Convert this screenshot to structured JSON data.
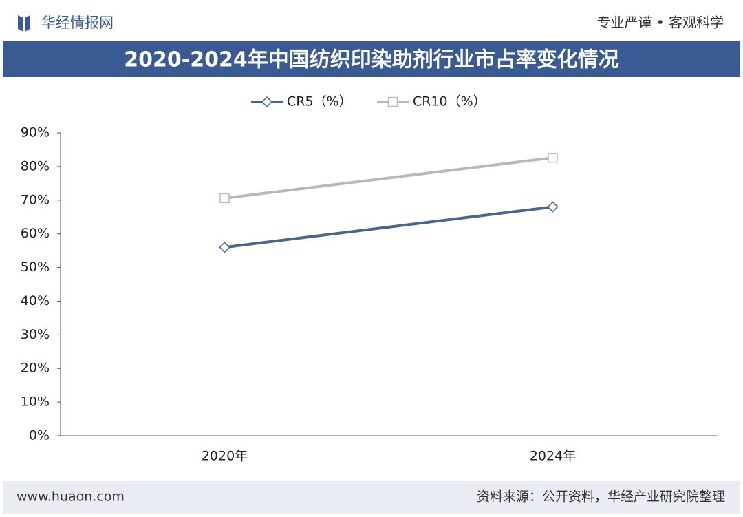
{
  "header": {
    "logo_text": "华经情报网",
    "slogan": "专业严谨 • 客观科学"
  },
  "chart_data": {
    "type": "line",
    "title": "2020-2024年中国纺织印染助剂行业市占率变化情况",
    "categories": [
      "2020年",
      "2024年"
    ],
    "series": [
      {
        "name": "CR5（%）",
        "color": "#4a6491",
        "marker": "diamond",
        "values": [
          56,
          68
        ]
      },
      {
        "name": "CR10（%）",
        "color": "#b8b8b8",
        "marker": "square",
        "values": [
          70.6,
          82.6
        ]
      }
    ],
    "ylim": [
      0,
      90
    ],
    "yticks": [
      {
        "value": 0,
        "label": "0%"
      },
      {
        "value": 10,
        "label": "10%"
      },
      {
        "value": 20,
        "label": "20%"
      },
      {
        "value": 30,
        "label": "30%"
      },
      {
        "value": 40,
        "label": "40%"
      },
      {
        "value": 50,
        "label": "50%"
      },
      {
        "value": 60,
        "label": "60%"
      },
      {
        "value": 70,
        "label": "70%"
      },
      {
        "value": 80,
        "label": "80%"
      },
      {
        "value": 90,
        "label": "90%"
      }
    ],
    "grid": false,
    "legend": "top"
  },
  "footer": {
    "website": "www.huaon.com",
    "source": "资料来源：公开资料，华经产业研究院整理"
  }
}
